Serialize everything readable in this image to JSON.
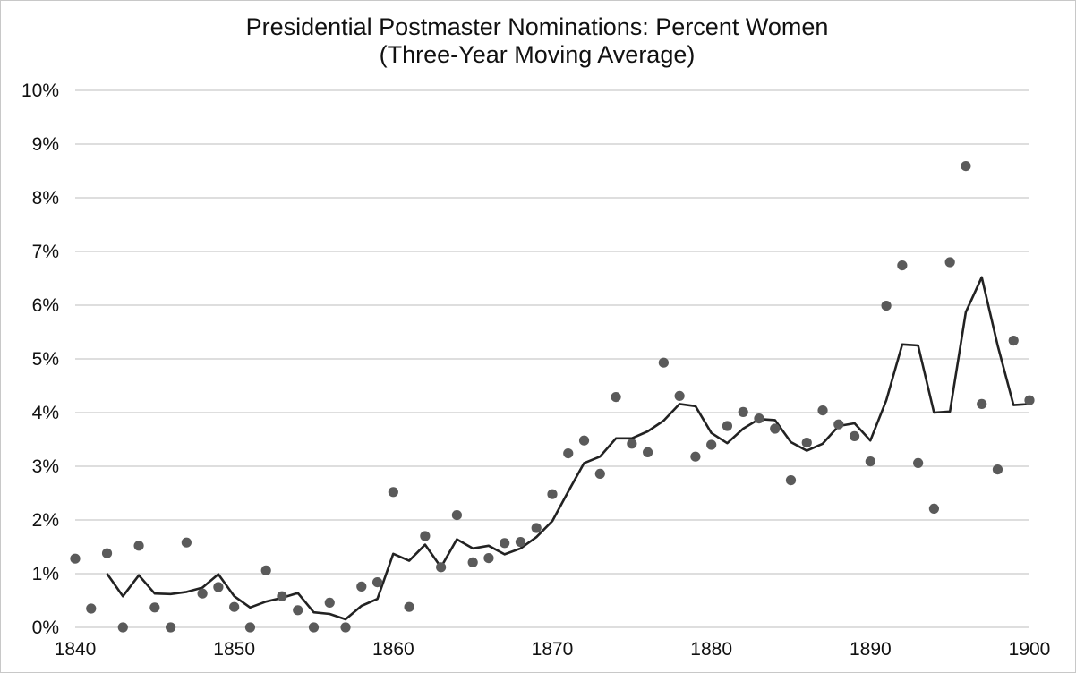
{
  "chart_data": {
    "type": "scatter",
    "title": "Presidential Postmaster Nominations: Percent Women",
    "subtitle": "(Three-Year Moving Average)",
    "xlim": [
      1840,
      1900
    ],
    "ylim": [
      0,
      10
    ],
    "x_ticks": [
      "1840",
      "1850",
      "1860",
      "1870",
      "1880",
      "1890",
      "1900"
    ],
    "x_tick_values": [
      1840,
      1850,
      1860,
      1870,
      1880,
      1890,
      1900
    ],
    "y_ticks": [
      "0%",
      "1%",
      "2%",
      "3%",
      "4%",
      "5%",
      "6%",
      "7%",
      "8%",
      "9%",
      "10%"
    ],
    "y_tick_values": [
      0,
      1,
      2,
      3,
      4,
      5,
      6,
      7,
      8,
      9,
      10
    ],
    "grid": true,
    "colors": {
      "points": "#5a5a5a",
      "line": "#222222",
      "grid": "#d4d4d4",
      "frame": "#c8c8c8"
    },
    "series": [
      {
        "kind": "points",
        "x": [
          1840,
          1841,
          1842,
          1843,
          1844,
          1845,
          1846,
          1847,
          1848,
          1849,
          1850,
          1851,
          1852,
          1853,
          1854,
          1855,
          1856,
          1857,
          1858,
          1859,
          1860,
          1861,
          1862,
          1863,
          1864,
          1865,
          1866,
          1867,
          1868,
          1869,
          1870,
          1871,
          1872,
          1873,
          1874,
          1875,
          1876,
          1877,
          1878,
          1879,
          1880,
          1881,
          1882,
          1883,
          1884,
          1885,
          1886,
          1887,
          1888,
          1889,
          1890,
          1891,
          1892,
          1893,
          1894,
          1895,
          1896,
          1897,
          1898,
          1899,
          1900
        ],
        "y": [
          1.28,
          0.35,
          1.38,
          0.0,
          1.52,
          0.37,
          0.0,
          1.58,
          0.63,
          0.75,
          0.38,
          0.0,
          1.06,
          0.58,
          0.32,
          0.0,
          0.46,
          0.0,
          0.76,
          0.84,
          2.52,
          0.38,
          1.7,
          1.12,
          2.09,
          1.21,
          1.29,
          1.57,
          1.59,
          1.85,
          2.48,
          3.24,
          3.48,
          2.86,
          4.29,
          3.42,
          3.26,
          4.93,
          4.31,
          3.18,
          3.4,
          3.75,
          4.01,
          3.89,
          3.7,
          2.74,
          3.44,
          4.04,
          3.78,
          3.56,
          3.09,
          5.99,
          6.74,
          3.06,
          2.21,
          6.8,
          8.59,
          4.16,
          2.94,
          5.34,
          4.23
        ]
      },
      {
        "kind": "line",
        "x": [
          1842,
          1843,
          1844,
          1845,
          1846,
          1847,
          1848,
          1849,
          1850,
          1851,
          1852,
          1853,
          1854,
          1855,
          1856,
          1857,
          1858,
          1859,
          1860,
          1861,
          1862,
          1863,
          1864,
          1865,
          1866,
          1867,
          1868,
          1869,
          1870,
          1871,
          1872,
          1873,
          1874,
          1875,
          1876,
          1877,
          1878,
          1879,
          1880,
          1881,
          1882,
          1883,
          1884,
          1885,
          1886,
          1887,
          1888,
          1889,
          1890,
          1891,
          1892,
          1893,
          1894,
          1895,
          1896,
          1897,
          1898,
          1899,
          1900
        ],
        "y": [
          1.0,
          0.58,
          0.97,
          0.63,
          0.62,
          0.66,
          0.74,
          0.99,
          0.58,
          0.37,
          0.48,
          0.55,
          0.64,
          0.28,
          0.25,
          0.15,
          0.4,
          0.53,
          1.37,
          1.24,
          1.54,
          1.12,
          1.64,
          1.47,
          1.52,
          1.36,
          1.47,
          1.68,
          1.98,
          2.53,
          3.06,
          3.18,
          3.52,
          3.52,
          3.65,
          3.85,
          4.16,
          4.12,
          3.62,
          3.43,
          3.7,
          3.88,
          3.86,
          3.45,
          3.29,
          3.42,
          3.75,
          3.8,
          3.48,
          4.23,
          5.27,
          5.25,
          4.0,
          4.02,
          5.87,
          6.52,
          5.25,
          4.14,
          4.16
        ]
      }
    ]
  }
}
